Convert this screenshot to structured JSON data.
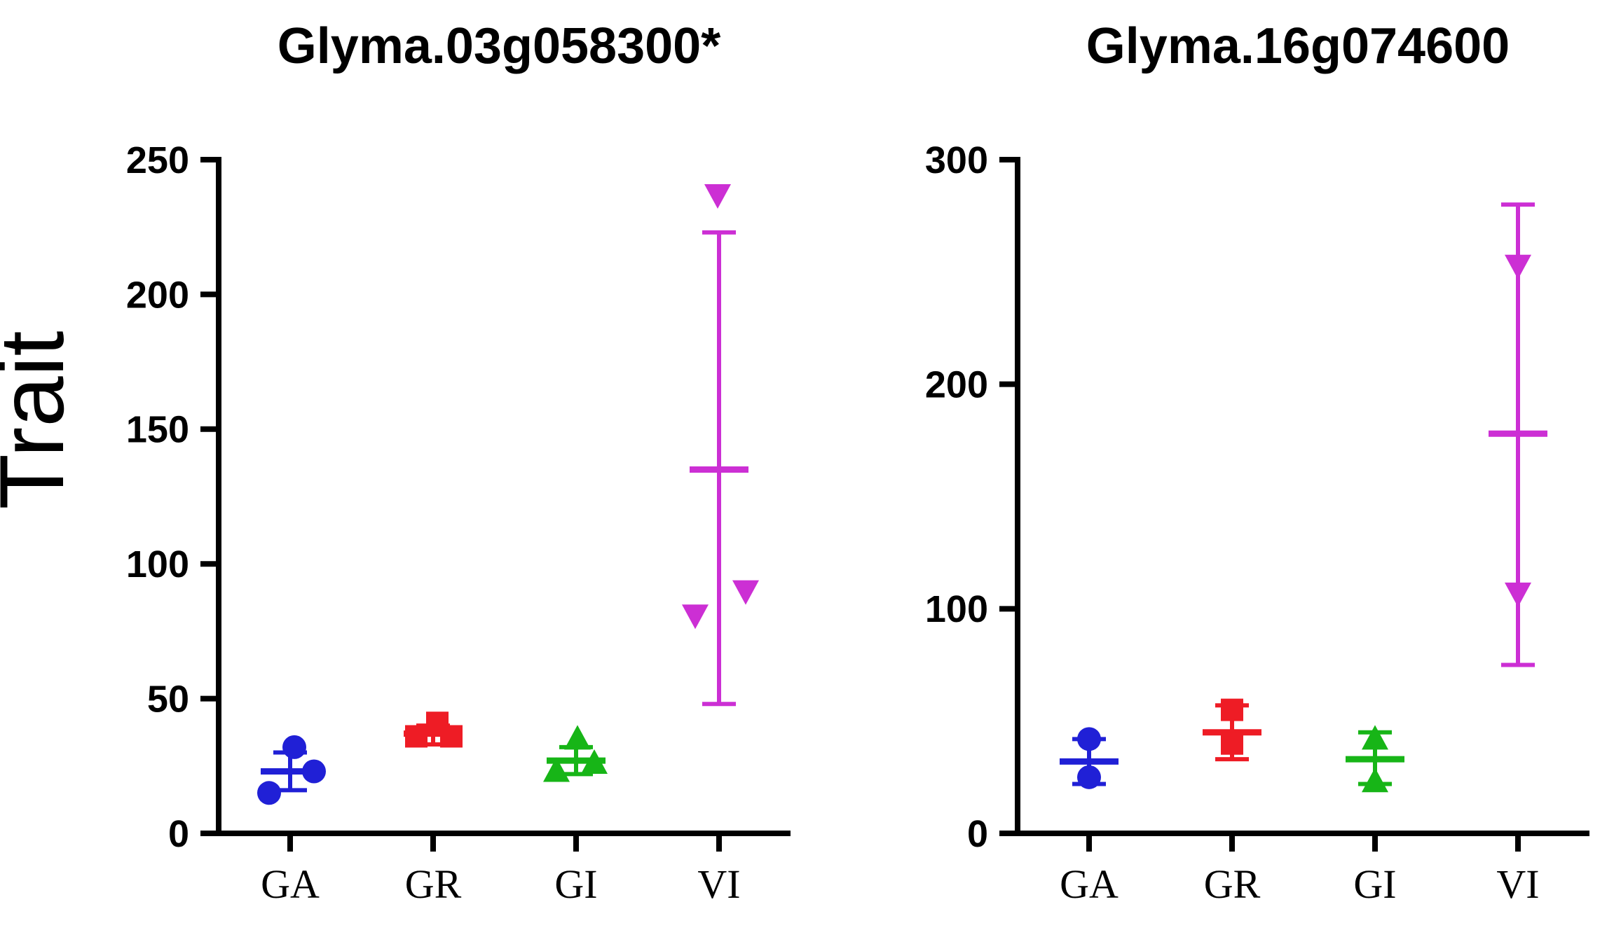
{
  "figure": {
    "y_axis_title": "Trait",
    "background": "#ffffff",
    "axis_color": "#000000"
  },
  "chart_data": [
    {
      "type": "scatter",
      "title": "Glyma.03g058300*",
      "xlabel": "",
      "ylabel": "Trait",
      "ylim": [
        0,
        250
      ],
      "yticks": [
        0,
        50,
        100,
        150,
        200,
        250
      ],
      "categories": [
        "GA",
        "GR",
        "GI",
        "VI"
      ],
      "grid": false,
      "legend": "none",
      "groups": [
        {
          "name": "GA",
          "color": "#2020d6",
          "marker": "circle",
          "mean": 23,
          "error_low": 16,
          "error_high": 30,
          "points": [
            {
              "y": 32,
              "dx": 6
            },
            {
              "y": 23,
              "dx": 34
            },
            {
              "y": 15,
              "dx": -30
            }
          ]
        },
        {
          "name": "GR",
          "color": "#ee1c25",
          "marker": "square",
          "mean": 37,
          "error_low": 33,
          "error_high": 40,
          "points": [
            {
              "y": 41,
              "dx": 6
            },
            {
              "y": 36,
              "dx": -24
            },
            {
              "y": 36,
              "dx": 26
            }
          ]
        },
        {
          "name": "GI",
          "color": "#17b517",
          "marker": "triangle-up",
          "mean": 27,
          "error_low": 22,
          "error_high": 32,
          "points": [
            {
              "y": 35,
              "dx": 2
            },
            {
              "y": 23,
              "dx": -28
            },
            {
              "y": 26,
              "dx": 26
            }
          ]
        },
        {
          "name": "VI",
          "color": "#cc2fd4",
          "marker": "triangle-down",
          "mean": 135,
          "error_low": 48,
          "error_high": 223,
          "points": [
            {
              "y": 237,
              "dx": -2
            },
            {
              "y": 90,
              "dx": 38
            },
            {
              "y": 81,
              "dx": -34
            }
          ]
        }
      ]
    },
    {
      "type": "scatter",
      "title": "Glyma.16g074600",
      "xlabel": "",
      "ylabel": "",
      "ylim": [
        0,
        300
      ],
      "yticks": [
        0,
        100,
        200,
        300
      ],
      "categories": [
        "GA",
        "GR",
        "GI",
        "VI"
      ],
      "grid": false,
      "legend": "none",
      "groups": [
        {
          "name": "GA",
          "color": "#2020d6",
          "marker": "circle",
          "mean": 32,
          "error_low": 22,
          "error_high": 42,
          "points": [
            {
              "y": 42,
              "dx": 0
            },
            {
              "y": 25,
              "dx": 0
            }
          ]
        },
        {
          "name": "GR",
          "color": "#ee1c25",
          "marker": "square",
          "mean": 45,
          "error_low": 33,
          "error_high": 57,
          "points": [
            {
              "y": 55,
              "dx": 0
            },
            {
              "y": 40,
              "dx": 0
            }
          ]
        },
        {
          "name": "GI",
          "color": "#17b517",
          "marker": "triangle-up",
          "mean": 33,
          "error_low": 22,
          "error_high": 45,
          "points": [
            {
              "y": 42,
              "dx": 0
            },
            {
              "y": 23,
              "dx": 0
            }
          ]
        },
        {
          "name": "VI",
          "color": "#cc2fd4",
          "marker": "triangle-down",
          "mean": 178,
          "error_low": 75,
          "error_high": 280,
          "points": [
            {
              "y": 253,
              "dx": 0
            },
            {
              "y": 107,
              "dx": 0
            }
          ]
        }
      ]
    }
  ]
}
